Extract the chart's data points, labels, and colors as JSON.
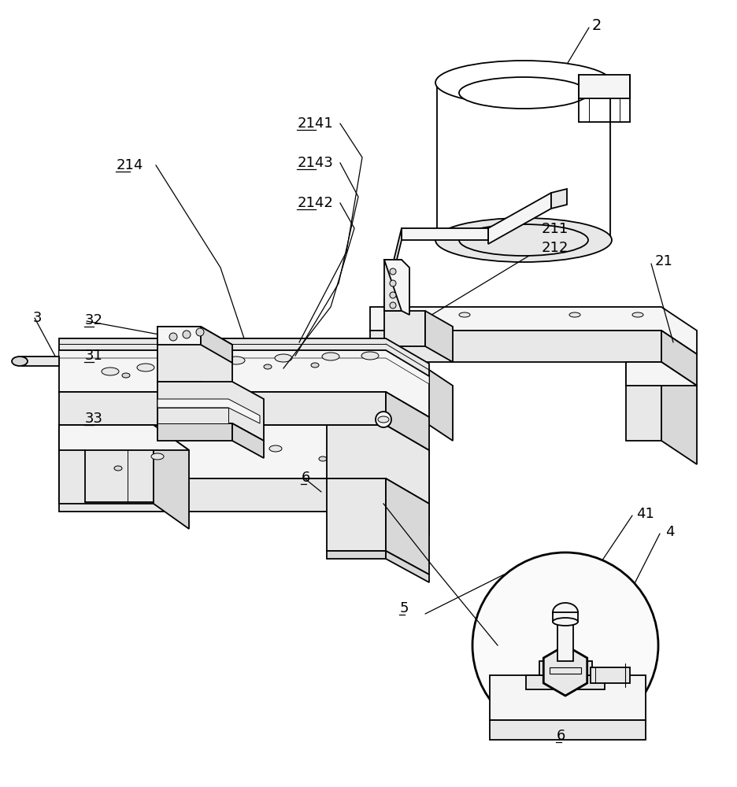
{
  "background": "#ffffff",
  "lc": "#000000",
  "lw": 1.3,
  "lw_thin": 0.7,
  "lw_thick": 2.0,
  "fl": "#f5f5f5",
  "fm": "#e8e8e8",
  "fd": "#d8d8d8",
  "fw": "#ffffff",
  "labels": {
    "2": [
      752,
      32,
      false
    ],
    "21": [
      832,
      332,
      false
    ],
    "211": [
      688,
      291,
      false
    ],
    "212": [
      688,
      315,
      false
    ],
    "214": [
      148,
      210,
      true
    ],
    "2141": [
      378,
      157,
      true
    ],
    "2143": [
      378,
      207,
      true
    ],
    "2142": [
      378,
      258,
      true
    ],
    "3": [
      42,
      404,
      false
    ],
    "32": [
      108,
      407,
      true
    ],
    "31": [
      108,
      452,
      true
    ],
    "33": [
      108,
      532,
      true
    ],
    "6": [
      383,
      607,
      true
    ],
    "5": [
      508,
      773,
      true
    ],
    "41": [
      808,
      653,
      false
    ],
    "4": [
      845,
      676,
      false
    ],
    "6b": [
      707,
      935,
      true
    ]
  }
}
